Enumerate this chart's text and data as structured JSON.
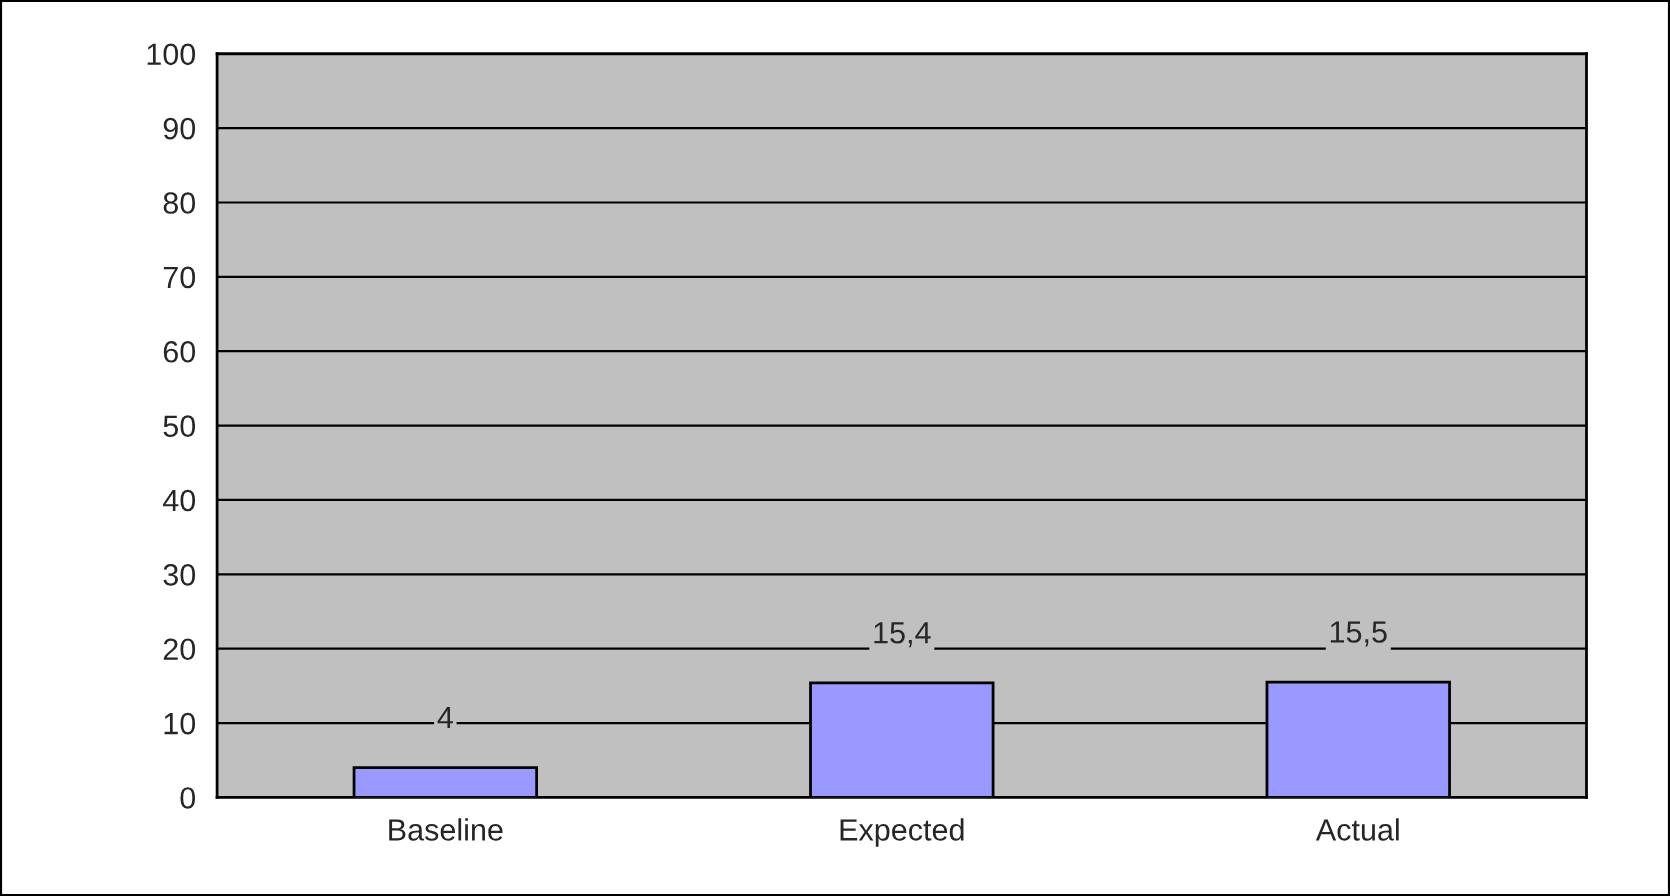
{
  "chart_data": {
    "type": "bar",
    "categories": [
      "Baseline",
      "Expected",
      "Actual"
    ],
    "values": [
      4,
      15.4,
      15.5
    ],
    "value_labels": [
      "4",
      "15,4",
      "15,5"
    ],
    "color": "#9999ff",
    "ylim": [
      0,
      100
    ],
    "yticks": [
      0,
      10,
      20,
      30,
      40,
      50,
      60,
      70,
      80,
      90,
      100
    ],
    "grid": "y"
  }
}
